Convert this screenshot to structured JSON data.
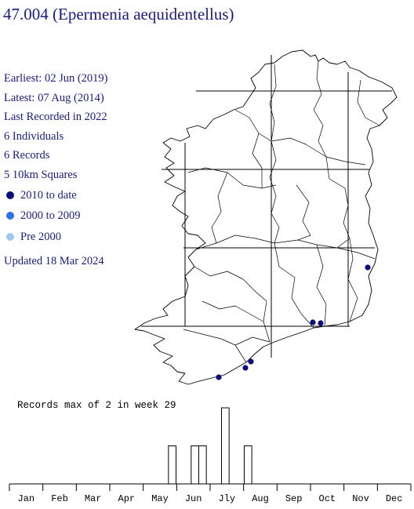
{
  "title": "47.004 (Epermenia aequidentellus)",
  "stats": {
    "earliest": "Earliest: 02 Jun (2019)",
    "latest": "Latest: 07 Aug (2014)",
    "last_recorded": "Last Recorded in 2022",
    "individuals": "6 Individuals",
    "records": "6 Records",
    "squares": "5 10km Squares"
  },
  "legend": [
    {
      "label": "2010 to date",
      "color": "#0b0b7a"
    },
    {
      "label": "2000 to 2009",
      "color": "#2f6fe8"
    },
    {
      "label": "Pre 2000",
      "color": "#9ccaf0"
    }
  ],
  "updated": "Updated 18 Mar 2024",
  "map": {
    "record_dot_color": "#0b0b7a",
    "record_count_shown": 6
  },
  "chart_data": {
    "type": "bar",
    "title": "Records max of 2 in week 29",
    "x_tick_labels": [
      "Jan",
      "Feb",
      "Mar",
      "Apr",
      "May",
      "Jun",
      "Jly",
      "Aug",
      "Sep",
      "Oct",
      "Nov",
      "Dec"
    ],
    "x_unit": "week",
    "xlim": [
      1,
      53
    ],
    "ylim": [
      0,
      2
    ],
    "bars": [
      {
        "week": 22,
        "value": 1
      },
      {
        "week": 25,
        "value": 1
      },
      {
        "week": 26,
        "value": 1
      },
      {
        "week": 29,
        "value": 2
      },
      {
        "week": 32,
        "value": 1
      }
    ]
  }
}
